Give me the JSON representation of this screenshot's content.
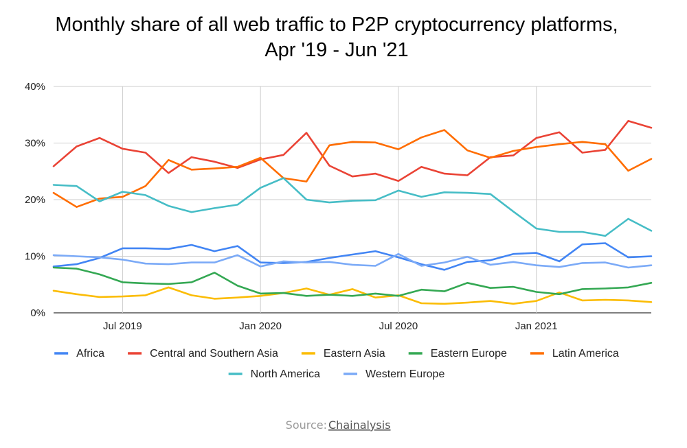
{
  "chart_data": {
    "type": "line",
    "title_line1": "Monthly share of all web traffic to P2P cryptocurrency platforms,",
    "title_line2": "Apr '19 - Jun '21",
    "x": [
      "2019-04",
      "2019-05",
      "2019-06",
      "2019-07",
      "2019-08",
      "2019-09",
      "2019-10",
      "2019-11",
      "2019-12",
      "2020-01",
      "2020-02",
      "2020-03",
      "2020-04",
      "2020-05",
      "2020-06",
      "2020-07",
      "2020-08",
      "2020-09",
      "2020-10",
      "2020-11",
      "2020-12",
      "2021-01",
      "2021-02",
      "2021-03",
      "2021-04",
      "2021-05",
      "2021-06"
    ],
    "x_ticks": [
      {
        "label": "Jul 2019",
        "x": "2019-07"
      },
      {
        "label": "Jan 2020",
        "x": "2020-01"
      },
      {
        "label": "Jul 2020",
        "x": "2020-07"
      },
      {
        "label": "Jan 2021",
        "x": "2021-01"
      }
    ],
    "y_ticks": [
      "0%",
      "10%",
      "20%",
      "30%",
      "40%"
    ],
    "ylim": [
      0,
      40
    ],
    "grid": true,
    "legend_position": "bottom",
    "series": [
      {
        "name": "Africa",
        "color": "#4285f4",
        "values": [
          8.2,
          8.6,
          9.7,
          11.4,
          11.4,
          11.3,
          12.0,
          10.9,
          11.8,
          8.9,
          8.8,
          9.0,
          9.7,
          10.3,
          10.9,
          9.8,
          8.6,
          7.6,
          9.0,
          9.3,
          10.4,
          10.6,
          9.1,
          12.1,
          12.3,
          9.8,
          10.0
        ]
      },
      {
        "name": "Central and Southern Asia",
        "color": "#ea4335",
        "values": [
          25.9,
          29.4,
          30.9,
          29.0,
          28.3,
          24.7,
          27.5,
          26.7,
          25.6,
          27.1,
          27.9,
          31.8,
          26.0,
          24.1,
          24.6,
          23.3,
          25.8,
          24.6,
          24.3,
          27.5,
          27.8,
          30.9,
          31.9,
          28.3,
          28.8,
          33.9,
          32.7
        ]
      },
      {
        "name": "Eastern Asia",
        "color": "#fbbc04",
        "values": [
          3.9,
          3.3,
          2.8,
          2.9,
          3.1,
          4.5,
          3.1,
          2.5,
          2.7,
          3.0,
          3.5,
          4.3,
          3.2,
          4.2,
          2.7,
          3.1,
          1.7,
          1.6,
          1.8,
          2.1,
          1.6,
          2.1,
          3.6,
          2.2,
          2.3,
          2.2,
          1.9
        ]
      },
      {
        "name": "Eastern Europe",
        "color": "#34a853",
        "values": [
          8.0,
          7.8,
          6.8,
          5.4,
          5.2,
          5.1,
          5.4,
          7.1,
          4.8,
          3.4,
          3.5,
          3.0,
          3.2,
          3.0,
          3.4,
          3.0,
          4.1,
          3.8,
          5.3,
          4.4,
          4.6,
          3.7,
          3.3,
          4.2,
          4.3,
          4.5,
          5.3
        ]
      },
      {
        "name": "Latin America",
        "color": "#ff6d01",
        "values": [
          21.2,
          18.7,
          20.2,
          20.5,
          22.4,
          27.0,
          25.3,
          25.5,
          25.8,
          27.4,
          23.8,
          23.2,
          29.6,
          30.2,
          30.1,
          28.9,
          31.0,
          32.3,
          28.7,
          27.4,
          28.6,
          29.3,
          29.8,
          30.2,
          29.8,
          25.1,
          27.2
        ]
      },
      {
        "name": "North America",
        "color": "#46bdc6",
        "values": [
          22.6,
          22.4,
          19.7,
          21.4,
          20.8,
          18.9,
          17.8,
          18.5,
          19.1,
          22.1,
          23.8,
          20.0,
          19.5,
          19.8,
          19.9,
          21.6,
          20.5,
          21.3,
          21.2,
          21.0,
          17.9,
          14.9,
          14.3,
          14.3,
          13.6,
          16.6,
          14.5
        ]
      },
      {
        "name": "Western Europe",
        "color": "#7baaf7",
        "values": [
          10.2,
          10.0,
          9.8,
          9.4,
          8.7,
          8.6,
          8.9,
          8.9,
          10.2,
          8.2,
          9.1,
          8.9,
          9.0,
          8.5,
          8.3,
          10.4,
          8.3,
          8.9,
          9.9,
          8.5,
          9.0,
          8.4,
          8.1,
          8.8,
          8.9,
          8.0,
          8.4
        ]
      }
    ],
    "source_label": "Source:",
    "source_link": "Chainalysis"
  }
}
